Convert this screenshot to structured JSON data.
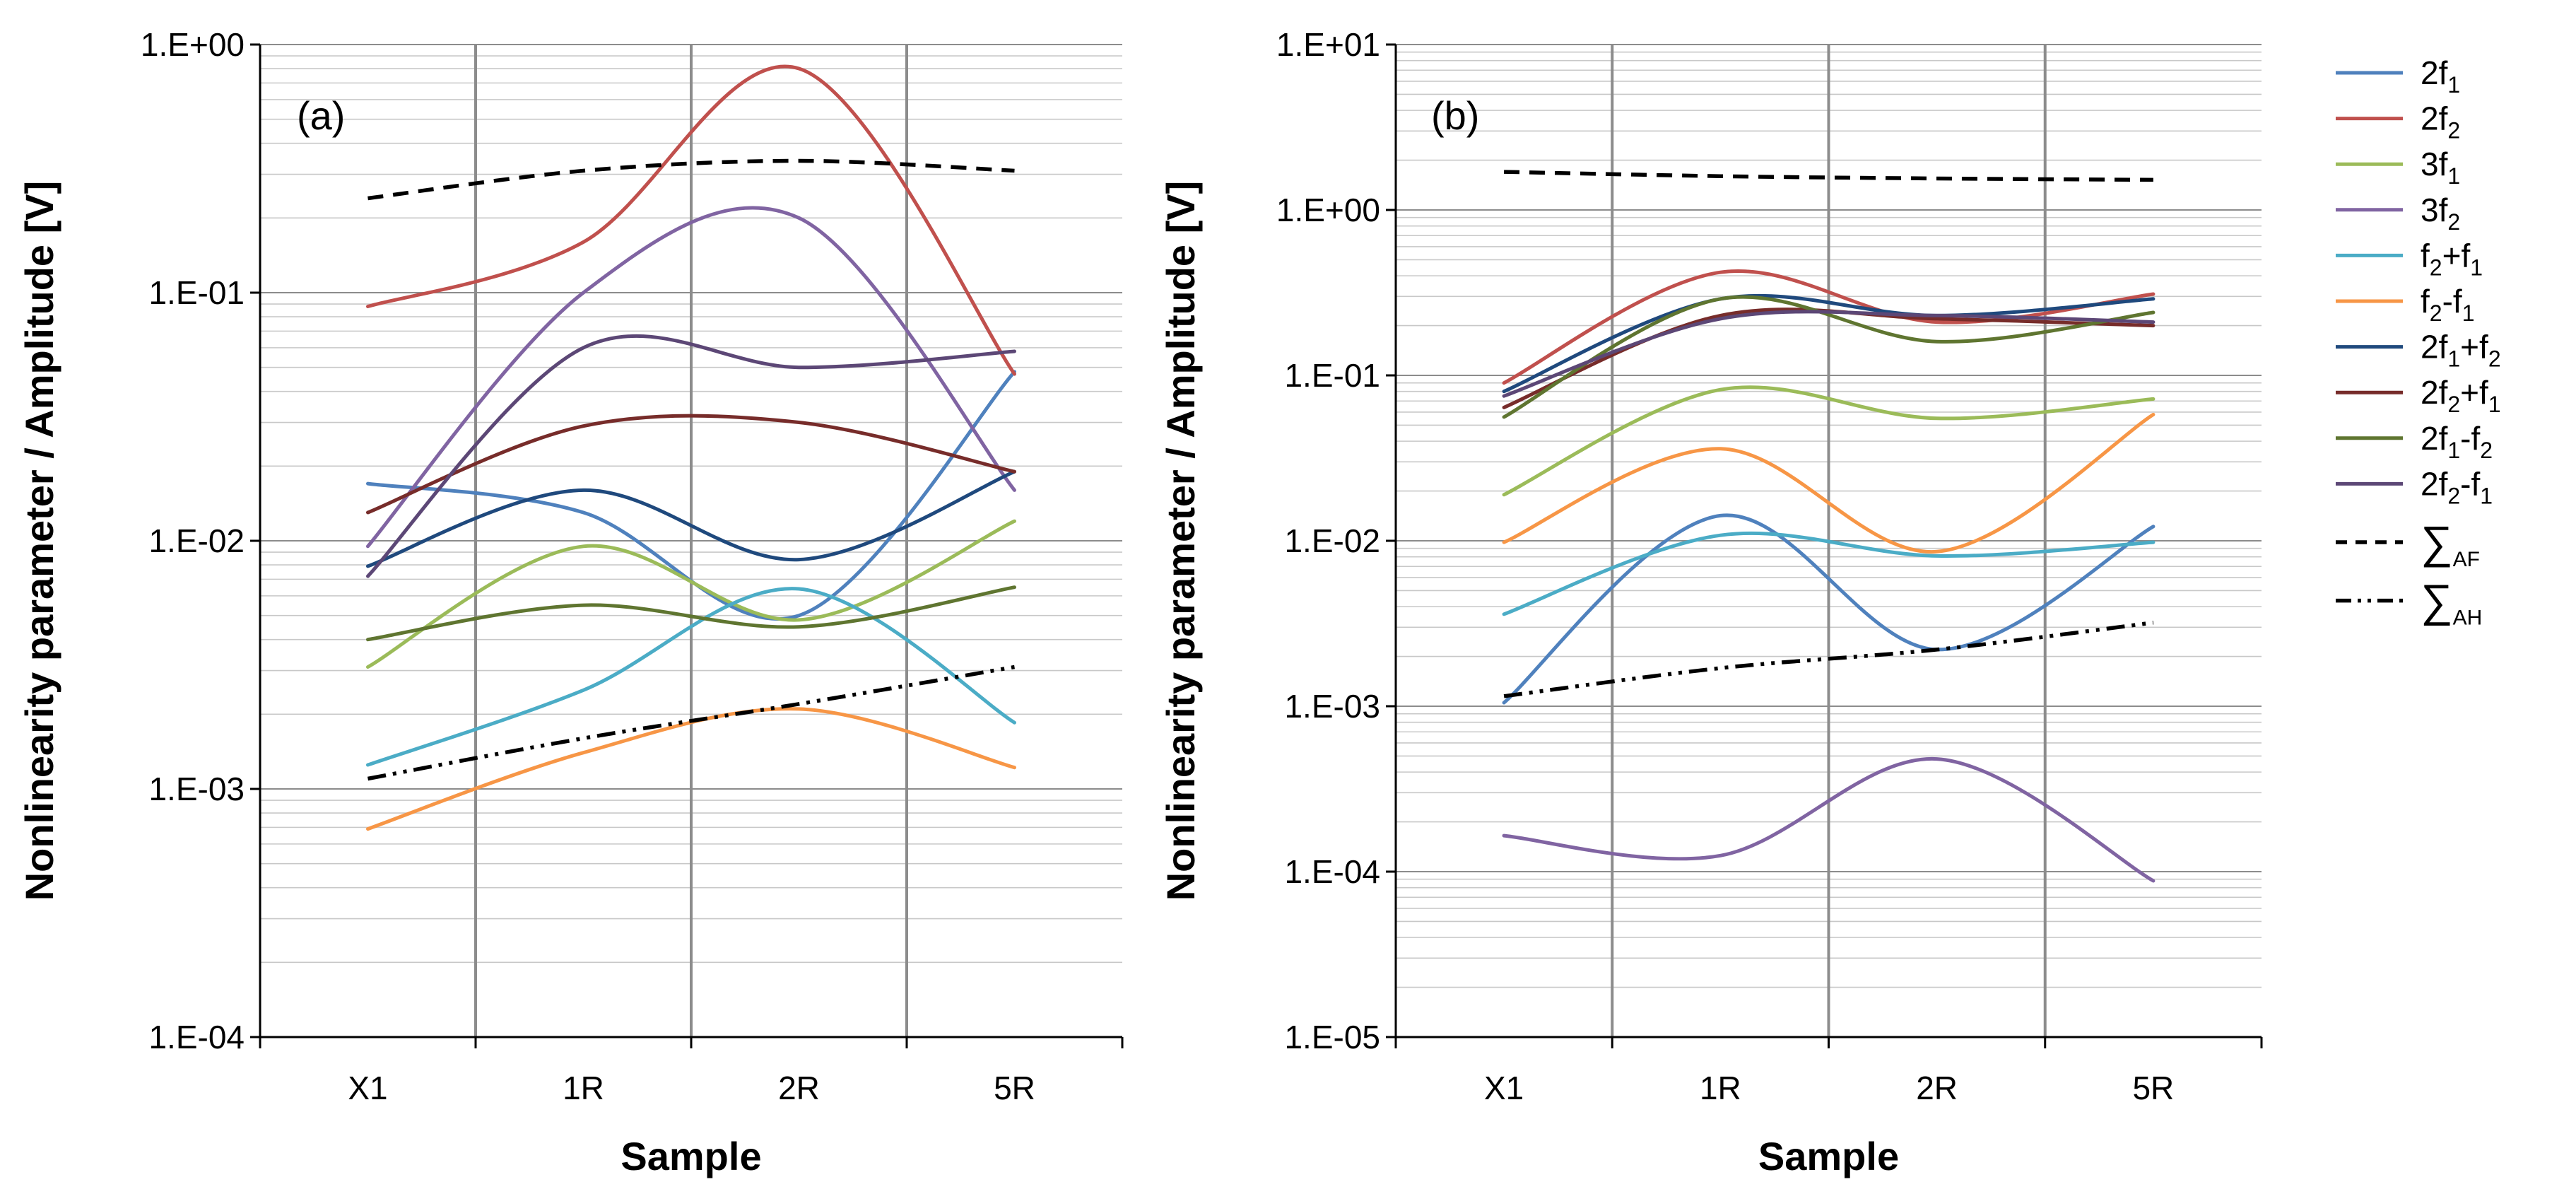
{
  "chart_data": [
    {
      "type": "line",
      "panel_label": "(a)",
      "categories": [
        "X1",
        "1R",
        "2R",
        "5R"
      ],
      "xlabel": "Sample",
      "ylabel": "Nonlinearity parameter / Amplitude [V]",
      "yscale": "log",
      "ylim": [
        0.0001,
        1
      ],
      "ytick_labels": [
        "1.E-04",
        "1.E-03",
        "1.E-02",
        "1.E-01",
        "1.E+00"
      ],
      "grid": true,
      "series": [
        {
          "name": "2f1",
          "values": [
            0.017,
            0.013,
            0.005,
            0.048
          ]
        },
        {
          "name": "2f2",
          "values": [
            0.088,
            0.16,
            0.8,
            0.047
          ]
        },
        {
          "name": "3f1",
          "values": [
            0.0031,
            0.0095,
            0.0048,
            0.012
          ]
        },
        {
          "name": "3f2",
          "values": [
            0.0095,
            0.1,
            0.2,
            0.016
          ]
        },
        {
          "name": "f2+f1",
          "values": [
            0.00125,
            0.0025,
            0.0064,
            0.00185
          ]
        },
        {
          "name": "f2-f1",
          "values": [
            0.00069,
            0.0014,
            0.0021,
            0.00122
          ]
        },
        {
          "name": "2f1+f2",
          "values": [
            0.0079,
            0.016,
            0.0084,
            0.019
          ]
        },
        {
          "name": "2f2+f1",
          "values": [
            0.013,
            0.029,
            0.03,
            0.019
          ]
        },
        {
          "name": "2f1-f2",
          "values": [
            0.004,
            0.0055,
            0.0045,
            0.0065
          ]
        },
        {
          "name": "2f2-f1",
          "values": [
            0.0072,
            0.06,
            0.05,
            0.058
          ]
        },
        {
          "name": "ΣAF",
          "values": [
            0.24,
            0.31,
            0.34,
            0.31
          ]
        },
        {
          "name": "ΣAH",
          "values": [
            0.0011,
            0.0016,
            0.0022,
            0.0031
          ]
        }
      ]
    },
    {
      "type": "line",
      "panel_label": "(b)",
      "categories": [
        "X1",
        "1R",
        "2R",
        "5R"
      ],
      "xlabel": "Sample",
      "ylabel": "Nonlinearity parameter / Amplitude [V]",
      "yscale": "log",
      "ylim": [
        1e-05,
        10
      ],
      "ytick_labels": [
        "1.E-05",
        "1.E-04",
        "1.E-03",
        "1.E-02",
        "1.E-01",
        "1.E+00",
        "1.E+01"
      ],
      "grid": true,
      "series": [
        {
          "name": "2f1",
          "values": [
            0.00105,
            0.0142,
            0.0022,
            0.0122
          ]
        },
        {
          "name": "2f2",
          "values": [
            0.09,
            0.42,
            0.21,
            0.31
          ]
        },
        {
          "name": "3f1",
          "values": [
            0.019,
            0.082,
            0.055,
            0.072
          ]
        },
        {
          "name": "3f2",
          "values": [
            0.000165,
            0.000125,
            0.00048,
            8.8e-05
          ]
        },
        {
          "name": "f2+f1",
          "values": [
            0.0036,
            0.0108,
            0.0081,
            0.0098
          ]
        },
        {
          "name": "f2-f1",
          "values": [
            0.0098,
            0.036,
            0.0086,
            0.058
          ]
        },
        {
          "name": "2f1+f2",
          "values": [
            0.08,
            0.29,
            0.23,
            0.29
          ]
        },
        {
          "name": "2f2+f1",
          "values": [
            0.064,
            0.23,
            0.22,
            0.2
          ]
        },
        {
          "name": "2f1-f2",
          "values": [
            0.056,
            0.29,
            0.16,
            0.24
          ]
        },
        {
          "name": "2f2-f1",
          "values": [
            0.075,
            0.22,
            0.23,
            0.21
          ]
        },
        {
          "name": "ΣAF",
          "values": [
            1.7,
            1.6,
            1.55,
            1.52
          ]
        },
        {
          "name": "ΣAH",
          "values": [
            0.00115,
            0.0017,
            0.0022,
            0.0032
          ]
        }
      ]
    }
  ],
  "legend": {
    "position": "right",
    "entries": [
      {
        "key": "2f1",
        "base": "2f",
        "sub": "1",
        "suffix": "",
        "suffix_sub": "",
        "color": "#4f81bd",
        "dash": "solid"
      },
      {
        "key": "2f2",
        "base": "2f",
        "sub": "2",
        "suffix": "",
        "suffix_sub": "",
        "color": "#c0504d",
        "dash": "solid"
      },
      {
        "key": "3f1",
        "base": "3f",
        "sub": "1",
        "suffix": "",
        "suffix_sub": "",
        "color": "#9bbb59",
        "dash": "solid"
      },
      {
        "key": "3f2",
        "base": "3f",
        "sub": "2",
        "suffix": "",
        "suffix_sub": "",
        "color": "#8064a2",
        "dash": "solid"
      },
      {
        "key": "f2+f1",
        "base": "f",
        "sub": "2",
        "suffix": "+f",
        "suffix_sub": "1",
        "color": "#4bacc6",
        "dash": "solid"
      },
      {
        "key": "f2-f1",
        "base": "f",
        "sub": "2",
        "suffix": "-f",
        "suffix_sub": "1",
        "color": "#f79646",
        "dash": "solid"
      },
      {
        "key": "2f1+f2",
        "base": "2f",
        "sub": "1",
        "suffix": "+f",
        "suffix_sub": "2",
        "color": "#1f497d",
        "dash": "solid"
      },
      {
        "key": "2f2+f1",
        "base": "2f",
        "sub": "2",
        "suffix": "+f",
        "suffix_sub": "1",
        "color": "#772c2a",
        "dash": "solid"
      },
      {
        "key": "2f1-f2",
        "base": "2f",
        "sub": "1",
        "suffix": "-f",
        "suffix_sub": "2",
        "color": "#5f7530",
        "dash": "solid"
      },
      {
        "key": "2f2-f1",
        "base": "2f",
        "sub": "2",
        "suffix": "-f",
        "suffix_sub": "1",
        "color": "#5c4776",
        "dash": "solid"
      },
      {
        "key": "ΣAF",
        "base": "∑",
        "sub": "AF",
        "suffix": "",
        "suffix_sub": "",
        "color": "#000000",
        "dash": "dash"
      },
      {
        "key": "ΣAH",
        "base": "∑",
        "sub": "AH",
        "suffix": "",
        "suffix_sub": "",
        "color": "#000000",
        "dash": "dashdotdot"
      }
    ]
  }
}
